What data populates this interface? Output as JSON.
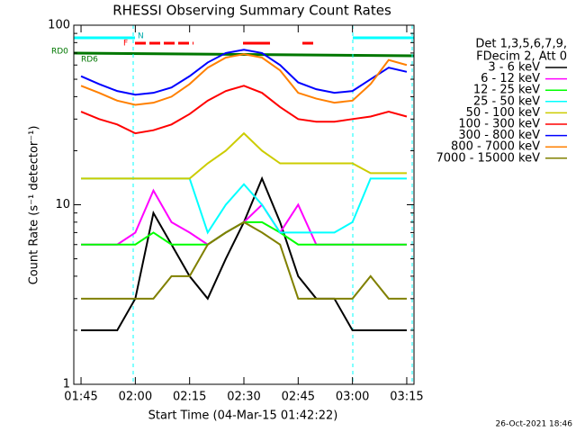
{
  "chart_data": {
    "type": "line",
    "title": "RHESSI Observing Summary Count Rates",
    "x_label": "Start Time (04-Mar-15 01:42:22)",
    "y_label": "Count Rate (s⁻¹ detector⁻¹)",
    "legend_header": [
      "Det 1,3,5,6,7,9,",
      "FDecim 2, Att 0"
    ],
    "footer": "26-Oct-2021 18:46",
    "annotations": [
      "RD0",
      "RD6",
      "N",
      "F"
    ],
    "log_y": true,
    "ylim": [
      1,
      100
    ],
    "yticks": [
      1,
      10,
      100
    ],
    "xlim": [
      "01:43",
      "03:17"
    ],
    "xticks": [
      "01:45",
      "02:00",
      "02:15",
      "02:30",
      "02:45",
      "03:00",
      "03:15"
    ],
    "x": [
      "01:45",
      "01:50",
      "01:55",
      "02:00",
      "02:05",
      "02:10",
      "02:15",
      "02:20",
      "02:25",
      "02:30",
      "02:35",
      "02:40",
      "02:45",
      "02:50",
      "02:55",
      "03:00",
      "03:05",
      "03:10",
      "03:15"
    ],
    "series": [
      {
        "name": "3 - 6 keV",
        "color": "#000000",
        "values": [
          2,
          2,
          2,
          3,
          9,
          6,
          4,
          3,
          5,
          8,
          14,
          8,
          4,
          3,
          3,
          2,
          2,
          2,
          2
        ]
      },
      {
        "name": "6 - 12 keV",
        "color": "#ff00ff",
        "values": [
          6,
          6,
          6,
          7,
          12,
          8,
          7,
          6,
          7,
          8,
          10,
          7,
          10,
          6,
          6,
          6,
          6,
          6,
          6
        ]
      },
      {
        "name": "12 - 25 keV",
        "color": "#00ff00",
        "values": [
          6,
          6,
          6,
          6,
          7,
          6,
          6,
          6,
          7,
          8,
          8,
          7,
          6,
          6,
          6,
          6,
          6,
          6,
          6
        ]
      },
      {
        "name": "25 - 50 keV",
        "color": "#00ffff",
        "values": [
          14,
          14,
          14,
          14,
          14,
          14,
          14,
          7,
          10,
          13,
          10,
          7,
          7,
          7,
          7,
          8,
          14,
          14,
          14
        ]
      },
      {
        "name": "50 - 100 keV",
        "color": "#cccc00",
        "values": [
          14,
          14,
          14,
          14,
          14,
          14,
          14,
          17,
          20,
          25,
          20,
          17,
          17,
          17,
          17,
          17,
          15,
          15,
          15
        ]
      },
      {
        "name": "100 - 300 keV",
        "color": "#ff0000",
        "values": [
          33,
          30,
          28,
          25,
          26,
          28,
          32,
          38,
          43,
          46,
          42,
          35,
          30,
          29,
          29,
          30,
          31,
          33,
          31
        ]
      },
      {
        "name": "300 - 800 keV",
        "color": "#0000ff",
        "values": [
          52,
          47,
          43,
          41,
          42,
          45,
          52,
          62,
          70,
          73,
          70,
          60,
          48,
          44,
          42,
          43,
          50,
          58,
          55
        ]
      },
      {
        "name": "800 - 7000 keV",
        "color": "#ff8000",
        "values": [
          46,
          42,
          38,
          36,
          37,
          40,
          47,
          58,
          66,
          69,
          66,
          56,
          42,
          39,
          37,
          38,
          47,
          64,
          60
        ]
      },
      {
        "name": "7000 - 15000 keV",
        "color": "#808000",
        "values": [
          3,
          3,
          3,
          3,
          3,
          4,
          4,
          6,
          7,
          8,
          7,
          6,
          3,
          3,
          3,
          3,
          4,
          3,
          3
        ]
      }
    ]
  }
}
